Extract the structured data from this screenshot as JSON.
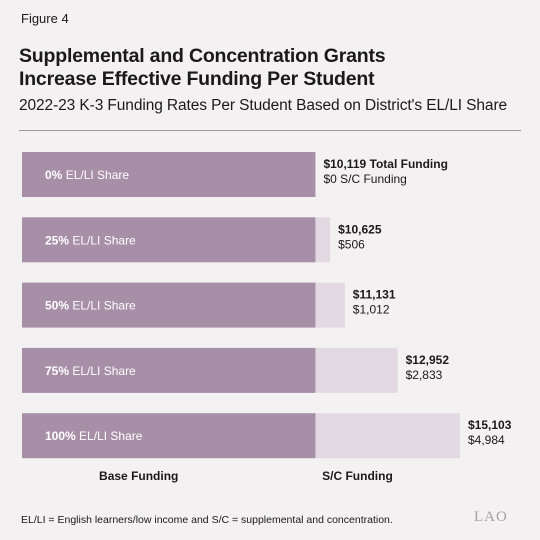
{
  "figure_label": "Figure 4",
  "title_line1": "Supplemental and Concentration Grants",
  "title_line2": "Increase Effective Funding Per Student",
  "subtitle": "2022-23 K-3 Funding Rates Per Student Based on District's EL/LI Share",
  "note": "EL/LI = English learners/low income and S/C = supplemental and concentration.",
  "logo": "LAO",
  "colors": {
    "base": "#a88fa8",
    "sc": "#e3d9e3",
    "background": "#f3f1f1"
  },
  "chart_data": {
    "type": "bar",
    "orientation": "horizontal",
    "stacked": true,
    "categories": [
      "0%",
      "25%",
      "50%",
      "75%",
      "100%"
    ],
    "category_suffix": "EL/LI Share",
    "series": [
      {
        "name": "Base Funding",
        "values": [
          10119,
          10119,
          10119,
          10119,
          10119
        ]
      },
      {
        "name": "S/C Funding",
        "values": [
          0,
          506,
          1012,
          2833,
          4984
        ]
      }
    ],
    "total_labels": [
      "$10,119 Total Funding",
      "$10,625",
      "$11,131",
      "$12,952",
      "$15,103"
    ],
    "sc_labels": [
      "$0 S/C Funding",
      "$506",
      "$1,012",
      "$2,833",
      "$4,984"
    ],
    "legend_position": "bottom",
    "xlim": [
      0,
      15103
    ],
    "grid": false
  }
}
